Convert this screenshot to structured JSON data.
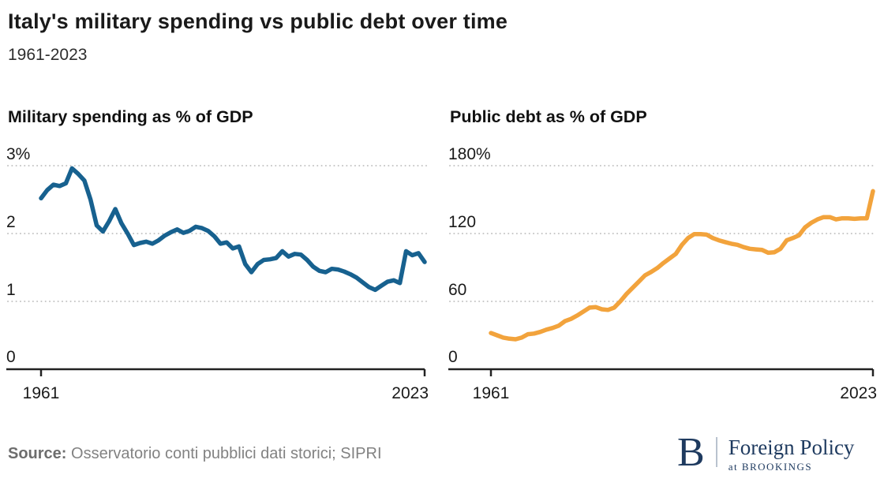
{
  "header": {
    "title": "Italy's military spending vs public debt over time",
    "subtitle": "1961-2023"
  },
  "chart_data": [
    {
      "type": "line",
      "title": "Military spending as % of GDP",
      "line_color": "#17618F",
      "year_start": 1961,
      "year_end": 2023,
      "xticks": [
        "1961",
        "2023"
      ],
      "yticks": [
        {
          "value": 3,
          "label": "3%"
        },
        {
          "value": 2,
          "label": "2"
        },
        {
          "value": 1,
          "label": "1"
        },
        {
          "value": 0,
          "label": "0"
        }
      ],
      "ylim": [
        0,
        3.35
      ],
      "grid": "dotted horizontal",
      "legend": "none",
      "xlabel": "",
      "ylabel": "",
      "values": [
        2.52,
        2.64,
        2.72,
        2.7,
        2.74,
        2.96,
        2.88,
        2.78,
        2.5,
        2.12,
        2.03,
        2.18,
        2.36,
        2.15,
        2.0,
        1.83,
        1.86,
        1.88,
        1.85,
        1.9,
        1.97,
        2.02,
        2.06,
        2.01,
        2.04,
        2.1,
        2.08,
        2.04,
        1.96,
        1.85,
        1.87,
        1.78,
        1.81,
        1.55,
        1.43,
        1.55,
        1.61,
        1.62,
        1.64,
        1.74,
        1.66,
        1.7,
        1.69,
        1.61,
        1.51,
        1.45,
        1.43,
        1.48,
        1.47,
        1.44,
        1.4,
        1.35,
        1.28,
        1.21,
        1.17,
        1.23,
        1.29,
        1.31,
        1.27,
        1.74,
        1.68,
        1.71,
        1.58
      ]
    },
    {
      "type": "line",
      "title": "Public debt as % of GDP",
      "line_color": "#F2A33C",
      "year_start": 1961,
      "year_end": 2023,
      "xticks": [
        "1961",
        "2023"
      ],
      "yticks": [
        {
          "value": 180,
          "label": "180%"
        },
        {
          "value": 120,
          "label": "120"
        },
        {
          "value": 60,
          "label": "60"
        },
        {
          "value": 0,
          "label": "0"
        }
      ],
      "ylim": [
        0,
        201
      ],
      "grid": "dotted horizontal",
      "legend": "none",
      "xlabel": "",
      "ylabel": "",
      "values": [
        32,
        30,
        28,
        27,
        26.5,
        28,
        31,
        31.5,
        33,
        35,
        36.5,
        38.5,
        42.5,
        44.5,
        47.5,
        51,
        54.5,
        55,
        53,
        52.5,
        54.5,
        60,
        66.5,
        72,
        77.5,
        83,
        86,
        89.5,
        94,
        98,
        102,
        110,
        116,
        119.5,
        119.5,
        119,
        116,
        114,
        112.5,
        111,
        110,
        108,
        106.5,
        106,
        105.5,
        103,
        103.5,
        106.5,
        114,
        116,
        118.5,
        125.5,
        129.5,
        132.5,
        134.5,
        134.5,
        132.5,
        133.5,
        133.5,
        133,
        133.5,
        133.5,
        157.5
      ]
    }
  ],
  "footer": {
    "source_label": "Source:",
    "source_text": "Osservatorio conti pubblici dati storici; SIPRI"
  },
  "logo": {
    "mark": "B",
    "name": "Foreign Policy",
    "tagline": "at BROOKINGS",
    "color": "#1E3A5F"
  },
  "style": {
    "grid_color": "#c5c5c5",
    "axis_color": "#222222",
    "text_color": "#1a1a1a"
  }
}
